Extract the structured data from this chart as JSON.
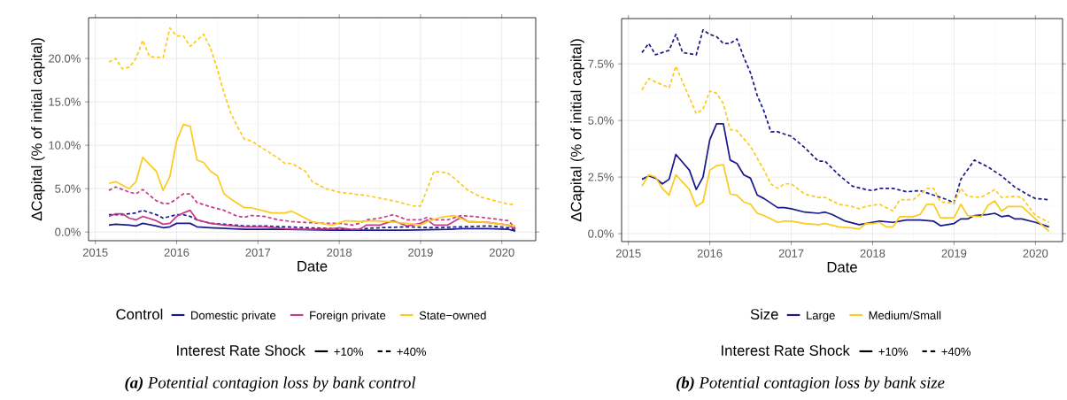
{
  "chart_data": [
    {
      "type": "line",
      "title": "**(a)** Potential contagion loss by bank control",
      "xlabel": "Date",
      "ylabel": "ΔCapital (% of initial capital)",
      "legend_title": "Control",
      "annotations": [
        "Interest Rate Shock",
        "+10%",
        "+40%"
      ],
      "legend": "bottom",
      "grid": true,
      "xlim": [
        "2014-12",
        "2020-06"
      ],
      "ylim": [
        -1.0,
        24.7
      ],
      "xticks": [
        "2015",
        "2016",
        "2017",
        "2018",
        "2019",
        "2020"
      ],
      "yticks": [
        {
          "value": 0,
          "label": "0.0%"
        },
        {
          "value": 5,
          "label": "5.0%"
        },
        {
          "value": 10,
          "label": "10.0%"
        },
        {
          "value": 15,
          "label": "15.0%"
        },
        {
          "value": 20,
          "label": "20.0%"
        }
      ],
      "series": [
        {
          "name": "Domestic private",
          "color": "#1a1a8c",
          "line_style": "solid",
          "x": [
            "2015-03",
            "2015-04",
            "2015-06",
            "2015-07",
            "2015-08",
            "2015-10",
            "2015-11",
            "2015-12",
            "2016-01",
            "2016-03",
            "2016-04",
            "2016-06",
            "2016-11",
            "2017-05",
            "2017-12",
            "2018-05",
            "2018-11",
            "2019-05",
            "2019-07",
            "2019-11",
            "2020-02",
            "2020-03"
          ],
          "values": [
            0.8,
            0.9,
            0.8,
            0.7,
            1.0,
            0.7,
            0.5,
            0.6,
            1.0,
            1.0,
            0.6,
            0.5,
            0.3,
            0.3,
            0.2,
            0.2,
            0.2,
            0.3,
            0.4,
            0.4,
            0.3,
            0.1
          ]
        },
        {
          "color": "#1a1a8c",
          "line_style": "dashed",
          "x": [
            "2015-03",
            "2015-05",
            "2015-07",
            "2015-08",
            "2015-10",
            "2015-11",
            "2016-01",
            "2016-02",
            "2016-03",
            "2016-04",
            "2016-06",
            "2016-08",
            "2016-11",
            "2017-02",
            "2017-05",
            "2017-08",
            "2017-12",
            "2018-03",
            "2018-07",
            "2018-11",
            "2019-03",
            "2019-07",
            "2019-11",
            "2020-02",
            "2020-03"
          ],
          "values": [
            2.0,
            2.0,
            2.2,
            2.5,
            2.0,
            1.6,
            2.0,
            2.0,
            1.8,
            1.4,
            1.0,
            0.9,
            0.7,
            0.7,
            0.6,
            0.5,
            0.4,
            0.3,
            0.5,
            0.6,
            0.5,
            0.6,
            0.7,
            0.5,
            0.2
          ]
        },
        {
          "name": "Foreign private",
          "color": "#c43c8a",
          "line_style": "solid",
          "x": [
            "2015-03",
            "2015-04",
            "2015-05",
            "2015-06",
            "2015-07",
            "2015-08",
            "2015-10",
            "2015-11",
            "2015-12",
            "2016-01",
            "2016-02",
            "2016-03",
            "2016-04",
            "2016-06",
            "2016-08",
            "2016-11",
            "2017-02",
            "2017-05",
            "2017-08",
            "2017-12",
            "2018-01",
            "2018-03",
            "2018-04",
            "2018-05",
            "2018-07",
            "2018-09",
            "2018-11",
            "2019-01",
            "2019-02",
            "2019-03",
            "2019-05",
            "2019-07",
            "2019-08",
            "2019-11",
            "2020-02",
            "2020-03"
          ],
          "values": [
            1.8,
            2.1,
            2.1,
            1.6,
            1.4,
            1.8,
            1.3,
            0.9,
            1.0,
            1.8,
            2.2,
            2.5,
            1.4,
            1.0,
            0.8,
            0.6,
            0.6,
            0.4,
            0.3,
            0.4,
            0.5,
            0.3,
            0.3,
            0.8,
            0.8,
            1.3,
            0.7,
            1.0,
            1.4,
            0.8,
            0.8,
            1.7,
            1.2,
            1.1,
            0.8,
            0.3
          ]
        },
        {
          "color": "#c43c8a",
          "line_style": "dashed",
          "x": [
            "2015-03",
            "2015-04",
            "2015-06",
            "2015-07",
            "2015-08",
            "2015-10",
            "2015-11",
            "2015-12",
            "2016-02",
            "2016-03",
            "2016-04",
            "2016-06",
            "2016-08",
            "2016-10",
            "2016-11",
            "2016-12",
            "2017-02",
            "2017-04",
            "2017-06",
            "2017-08",
            "2017-11",
            "2018-01",
            "2018-03",
            "2018-04",
            "2018-05",
            "2018-07",
            "2018-09",
            "2018-11",
            "2019-01",
            "2019-02",
            "2019-03",
            "2019-05",
            "2019-07",
            "2019-10",
            "2020-02",
            "2020-03"
          ],
          "values": [
            4.8,
            5.2,
            4.6,
            4.4,
            4.9,
            3.6,
            3.3,
            3.3,
            4.4,
            4.4,
            3.4,
            2.9,
            2.5,
            1.8,
            1.7,
            1.9,
            1.8,
            1.4,
            1.2,
            1.1,
            1.0,
            1.0,
            0.8,
            1.0,
            1.4,
            1.6,
            2.0,
            1.4,
            1.4,
            1.7,
            1.4,
            1.4,
            1.9,
            1.7,
            1.3,
            0.4
          ]
        },
        {
          "name": "State−owned",
          "color": "#fccb1f",
          "line_style": "solid",
          "x": [
            "2015-03",
            "2015-04",
            "2015-06",
            "2015-07",
            "2015-08",
            "2015-10",
            "2015-11",
            "2015-12",
            "2016-01",
            "2016-02",
            "2016-03",
            "2016-04",
            "2016-05",
            "2016-06",
            "2016-07",
            "2016-08",
            "2016-09",
            "2016-11",
            "2016-12",
            "2017-02",
            "2017-03",
            "2017-05",
            "2017-06",
            "2017-07",
            "2017-09",
            "2017-11",
            "2017-12",
            "2018-02",
            "2018-04",
            "2018-06",
            "2018-08",
            "2018-11",
            "2019-01",
            "2019-02",
            "2019-04",
            "2019-06",
            "2019-08",
            "2019-11",
            "2020-02",
            "2020-03"
          ],
          "values": [
            5.6,
            5.8,
            5.0,
            5.8,
            8.6,
            7.0,
            4.8,
            6.4,
            10.5,
            12.4,
            12.2,
            8.3,
            8.0,
            7.0,
            6.5,
            4.4,
            3.8,
            2.8,
            2.8,
            2.4,
            2.2,
            2.2,
            2.4,
            2.0,
            1.2,
            0.9,
            0.8,
            1.3,
            1.2,
            1.3,
            1.2,
            1.0,
            0.8,
            1.2,
            1.7,
            1.9,
            1.2,
            1.1,
            0.8,
            0.7
          ]
        },
        {
          "color": "#fccb1f",
          "line_style": "dashed",
          "x": [
            "2015-03",
            "2015-04",
            "2015-05",
            "2015-06",
            "2015-07",
            "2015-08",
            "2015-09",
            "2015-11",
            "2015-12",
            "2016-01",
            "2016-02",
            "2016-03",
            "2016-05",
            "2016-06",
            "2016-07",
            "2016-08",
            "2016-09",
            "2016-10",
            "2016-11",
            "2016-12",
            "2017-02",
            "2017-04",
            "2017-05",
            "2017-06",
            "2017-08",
            "2017-09",
            "2017-11",
            "2017-12",
            "2018-01",
            "2018-03",
            "2018-05",
            "2018-07",
            "2018-09",
            "2018-12",
            "2019-01",
            "2019-02",
            "2019-03",
            "2019-05",
            "2019-06",
            "2019-08",
            "2019-10",
            "2019-12",
            "2020-02",
            "2020-03"
          ],
          "values": [
            19.6,
            20.0,
            18.8,
            19.0,
            20.0,
            22.1,
            20.2,
            20.1,
            23.5,
            22.6,
            22.6,
            21.4,
            22.8,
            21.2,
            18.8,
            16.0,
            13.7,
            12.1,
            10.7,
            10.5,
            9.5,
            8.5,
            7.9,
            7.9,
            7.0,
            5.8,
            5.0,
            4.8,
            4.6,
            4.4,
            4.2,
            3.9,
            3.6,
            3.0,
            3.0,
            5.0,
            7.0,
            6.8,
            6.2,
            4.8,
            4.0,
            3.6,
            3.2,
            3.2
          ]
        }
      ]
    },
    {
      "type": "line",
      "title": "**(b)** Potential contagion loss by bank size",
      "xlabel": "Date",
      "ylabel": "ΔCapital (% of initial capital)",
      "legend_title": "Size",
      "annotations": [
        "Interest Rate Shock",
        "+10%",
        "+40%"
      ],
      "legend": "bottom",
      "grid": true,
      "xlim": [
        "2014-12",
        "2020-05"
      ],
      "ylim": [
        -0.35,
        9.5
      ],
      "xticks": [
        "2015",
        "2016",
        "2017",
        "2018",
        "2019",
        "2020"
      ],
      "yticks": [
        {
          "value": 0,
          "label": "0.0%"
        },
        {
          "value": 2.5,
          "label": "2.5%"
        },
        {
          "value": 5,
          "label": "5.0%"
        },
        {
          "value": 7.5,
          "label": "7.5%"
        }
      ],
      "series": [
        {
          "name": "Large",
          "color": "#1a1a8c",
          "line_style": "solid",
          "x": [
            "2015-03",
            "2015-04",
            "2015-05",
            "2015-06",
            "2015-07",
            "2015-08",
            "2015-10",
            "2015-11",
            "2015-12",
            "2016-01",
            "2016-02",
            "2016-03",
            "2016-04",
            "2016-05",
            "2016-06",
            "2016-07",
            "2016-08",
            "2016-09",
            "2016-11",
            "2016-12",
            "2017-01",
            "2017-03",
            "2017-05",
            "2017-06",
            "2017-07",
            "2017-09",
            "2017-11",
            "2017-12",
            "2018-02",
            "2018-04",
            "2018-06",
            "2018-08",
            "2018-10",
            "2018-11",
            "2019-01",
            "2019-02",
            "2019-03",
            "2019-04",
            "2019-06",
            "2019-07",
            "2019-08",
            "2019-09",
            "2019-10",
            "2019-11",
            "2020-01",
            "2020-03"
          ],
          "values": [
            2.4,
            2.55,
            2.45,
            2.2,
            2.4,
            3.5,
            2.8,
            1.95,
            2.5,
            4.15,
            4.85,
            4.85,
            3.25,
            3.1,
            2.6,
            2.45,
            1.7,
            1.55,
            1.15,
            1.15,
            1.1,
            0.95,
            0.9,
            0.95,
            0.85,
            0.55,
            0.4,
            0.45,
            0.55,
            0.5,
            0.6,
            0.6,
            0.55,
            0.35,
            0.45,
            0.65,
            0.65,
            0.8,
            0.85,
            0.9,
            0.75,
            0.8,
            0.65,
            0.65,
            0.5,
            0.3
          ]
        },
        {
          "color": "#1a1a8c",
          "line_style": "dashed",
          "x": [
            "2015-03",
            "2015-04",
            "2015-05",
            "2015-06",
            "2015-07",
            "2015-08",
            "2015-09",
            "2015-11",
            "2015-12",
            "2016-01",
            "2016-02",
            "2016-03",
            "2016-04",
            "2016-05",
            "2016-06",
            "2016-07",
            "2016-08",
            "2016-09",
            "2016-10",
            "2016-11",
            "2017-01",
            "2017-03",
            "2017-05",
            "2017-06",
            "2017-08",
            "2017-10",
            "2017-12",
            "2018-01",
            "2018-02",
            "2018-04",
            "2018-06",
            "2018-08",
            "2018-10",
            "2018-11",
            "2018-12",
            "2019-01",
            "2019-02",
            "2019-04",
            "2019-06",
            "2019-08",
            "2019-10",
            "2019-12",
            "2020-01",
            "2020-03"
          ],
          "values": [
            8.0,
            8.4,
            7.9,
            8.0,
            8.1,
            8.8,
            8.0,
            7.9,
            9.0,
            8.8,
            8.7,
            8.4,
            8.4,
            8.6,
            7.8,
            7.1,
            6.1,
            5.4,
            4.5,
            4.5,
            4.3,
            3.8,
            3.2,
            3.2,
            2.6,
            2.1,
            1.95,
            1.9,
            2.0,
            2.0,
            1.85,
            1.9,
            1.7,
            1.6,
            1.5,
            1.35,
            2.4,
            3.25,
            2.95,
            2.55,
            2.05,
            1.7,
            1.55,
            1.5
          ]
        },
        {
          "name": "Medium/Small",
          "color": "#fccb1f",
          "line_style": "solid",
          "x": [
            "2015-03",
            "2015-04",
            "2015-05",
            "2015-06",
            "2015-07",
            "2015-08",
            "2015-10",
            "2015-11",
            "2015-12",
            "2016-01",
            "2016-02",
            "2016-03",
            "2016-04",
            "2016-05",
            "2016-06",
            "2016-07",
            "2016-08",
            "2016-09",
            "2016-11",
            "2016-12",
            "2017-01",
            "2017-03",
            "2017-05",
            "2017-06",
            "2017-08",
            "2017-10",
            "2017-11",
            "2017-12",
            "2018-01",
            "2018-02",
            "2018-03",
            "2018-04",
            "2018-05",
            "2018-07",
            "2018-08",
            "2018-09",
            "2018-10",
            "2018-11",
            "2019-01",
            "2019-02",
            "2019-03",
            "2019-05",
            "2019-06",
            "2019-07",
            "2019-08",
            "2019-09",
            "2019-11",
            "2020-01",
            "2020-03"
          ],
          "values": [
            2.1,
            2.6,
            2.5,
            2.0,
            1.7,
            2.6,
            1.95,
            1.2,
            1.4,
            2.8,
            3.0,
            3.05,
            1.75,
            1.7,
            1.4,
            1.3,
            0.9,
            0.8,
            0.5,
            0.55,
            0.55,
            0.45,
            0.4,
            0.45,
            0.3,
            0.25,
            0.2,
            0.45,
            0.45,
            0.5,
            0.3,
            0.3,
            0.75,
            0.75,
            0.85,
            1.3,
            1.3,
            0.7,
            0.7,
            1.3,
            0.8,
            0.75,
            1.25,
            1.45,
            1.0,
            1.2,
            1.2,
            0.65,
            0.1
          ]
        },
        {
          "color": "#fccb1f",
          "line_style": "dashed",
          "x": [
            "2015-03",
            "2015-04",
            "2015-05",
            "2015-07",
            "2015-08",
            "2015-09",
            "2015-11",
            "2015-12",
            "2016-01",
            "2016-02",
            "2016-03",
            "2016-04",
            "2016-05",
            "2016-07",
            "2016-09",
            "2016-10",
            "2016-11",
            "2016-12",
            "2017-01",
            "2017-03",
            "2017-05",
            "2017-06",
            "2017-08",
            "2017-10",
            "2017-11",
            "2017-12",
            "2018-02",
            "2018-04",
            "2018-05",
            "2018-07",
            "2018-09",
            "2018-10",
            "2018-11",
            "2019-01",
            "2019-02",
            "2019-03",
            "2019-05",
            "2019-07",
            "2019-08",
            "2019-10",
            "2019-11",
            "2020-01",
            "2020-03"
          ],
          "values": [
            6.35,
            6.85,
            6.7,
            6.45,
            7.4,
            6.7,
            5.3,
            5.5,
            6.3,
            6.2,
            5.75,
            4.6,
            4.55,
            3.85,
            2.8,
            2.2,
            2.0,
            2.2,
            2.2,
            1.75,
            1.6,
            1.6,
            1.3,
            1.2,
            1.1,
            1.2,
            1.3,
            1.0,
            1.5,
            1.5,
            2.0,
            2.0,
            1.4,
            1.35,
            2.0,
            1.65,
            1.6,
            1.95,
            1.6,
            1.65,
            1.6,
            0.8,
            0.5
          ]
        }
      ]
    }
  ]
}
